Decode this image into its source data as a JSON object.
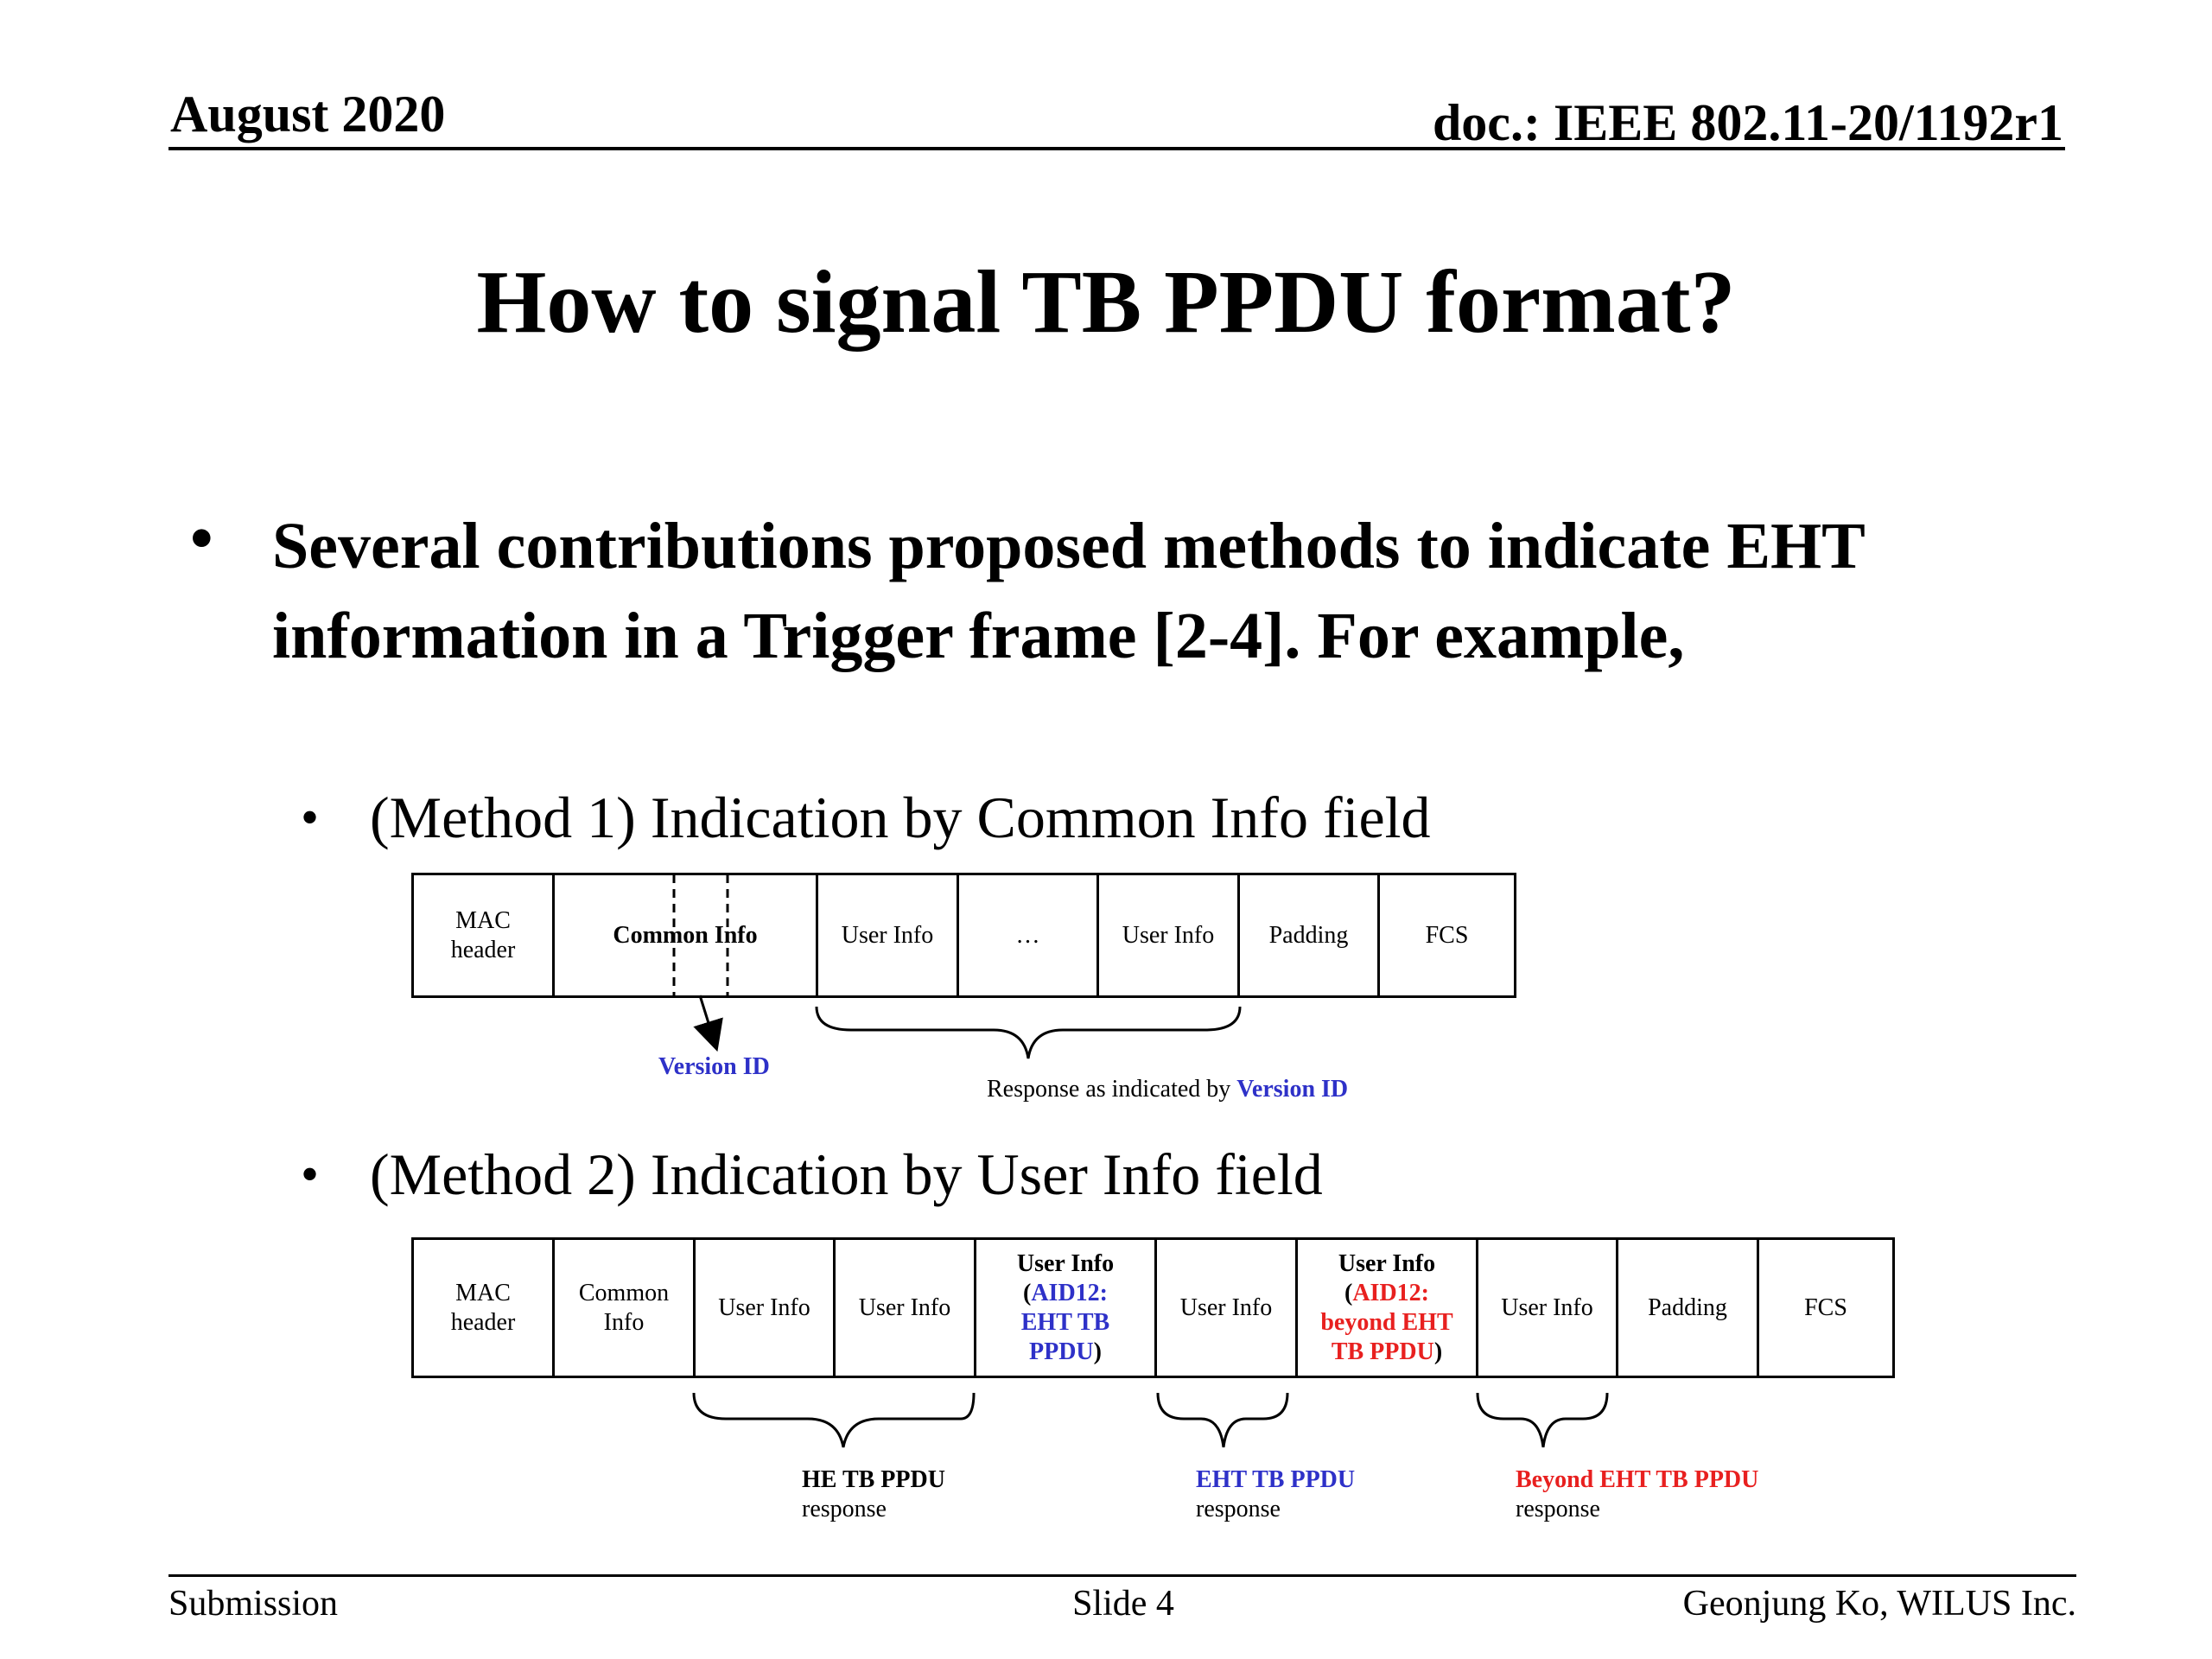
{
  "header": {
    "date": "August 2020",
    "doc": "doc.: IEEE 802.11-20/1192r1"
  },
  "title": "How to signal TB PPDU format?",
  "bullets": {
    "bullet_glyph": "•",
    "main": "Several contributions proposed methods to indicate EHT information in a Trigger frame [2-4]. For example,",
    "method1": "(Method 1) Indication by Common Info field",
    "method2": "(Method 2) Indication by User Info field"
  },
  "method1_frame": {
    "mac_header": "MAC header",
    "common_info": "Common Info",
    "user_info_1": "User Info",
    "ellipsis": "…",
    "user_info_2": "User Info",
    "padding": "Padding",
    "fcs": "FCS",
    "version_id_label": "Version ID",
    "response_prefix": "Response as indicated by ",
    "response_version_id": "Version ID"
  },
  "method2_frame": {
    "mac_header": "MAC header",
    "common_info": "Common Info",
    "user_info_1": "User Info",
    "user_info_2": "User Info",
    "eht_title": "User Info",
    "eht_open": "(",
    "eht_aid": "AID12: EHT TB PPDU",
    "eht_close": ")",
    "user_info_3": "User Info",
    "beyond_title": "User Info",
    "beyond_open": "(",
    "beyond_aid": "AID12: beyond EHT TB PPDU",
    "beyond_close": ")",
    "user_info_4": "User Info",
    "padding": "Padding",
    "fcs": "FCS",
    "he_label": "HE TB PPDU",
    "he_sub": "response",
    "eht_label": "EHT TB PPDU",
    "eht_sub": "response",
    "beyond_label": "Beyond EHT TB PPDU",
    "beyond_sub": "response"
  },
  "footer": {
    "left": "Submission",
    "center": "Slide 4",
    "right": "Geonjung Ko, WILUS Inc."
  },
  "colors": {
    "blue": "#2e31c8",
    "red": "#e8201f"
  }
}
